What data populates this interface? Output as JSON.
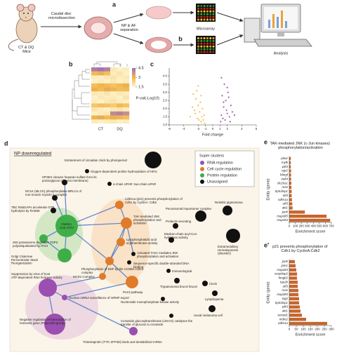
{
  "panels": {
    "a": {
      "label": "a",
      "mice": "CT & DQ Mice",
      "step1": "Caudal disc microdissection",
      "step2": "NP & AF separation",
      "microarray": "Microarray",
      "arrow_label": "b",
      "analysis": "Analysis"
    },
    "b": "b",
    "c": "c",
    "d": "d",
    "e": "e",
    "e2": "e'"
  },
  "network": {
    "title": "NP downregulated",
    "legend_title": "Super clusters",
    "clusters": [
      {
        "name": "RNA regulation",
        "color": "#9b4fb0",
        "nodes": [
          "Suppression by virus of host ATP-dependent RNA helicase activity",
          "Nuclear mRNA surveillance of mRNP export",
          "Negative regulation of transcription of homeotic gene (Polycomb group)",
          "Tristetraprolin (TTP, ZFP36) binds and destabilized mRNA"
        ]
      },
      {
        "name": "Cell cycle regulation",
        "color": "#e07b2a",
        "nodes": [
          "Cdkn1a (p21) prevents phosphorylation of Cdh1 by CyclinA: Cdk2",
          "TAK-mediated JNK phosphorylation and activation",
          "Lysophosphatidic acid acyltransferase activity",
          "Phosphorylation of DSF by the CCNB1:CDK1 complex",
          "MAD1 Complex",
          "PLK3 pathway"
        ]
      },
      {
        "name": "Protein regulation",
        "color": "#3fae49",
        "nodes": [
          "Clathrin coat of EV",
          "26S proteasome degrades TOP2 polyubiquitinated by ITCH",
          "Golgi Cisternae Pericentriolar Stack Reorganization"
        ]
      },
      {
        "name": "Unassigned",
        "color": "#111111",
        "nodes": [
          "Entrainment of circadian clock by photoperiod",
          "Oxygen-dependent proline hydroxylation of HIFα",
          "HPSE2 cleaves heparan sulfate from its proteoglycan (plasma membrane)",
          "MYLK (MLCK) phosphorylates MRLCs of non-muscle myosin II complex",
          "α-chain UPAR: two-chain uPAR",
          "TBC RabGAPs accelerate GTP hydrolysis by RAB35",
          "Peroxisomal importomer complex",
          "Prolactin secreting",
          "Retinitis pigmentosa",
          "Medium-chain acyl-CoA hydrolase activity",
          "Extramedullary Hematopoiesis (disorder)",
          "Activated TAK1 mediates JNK phosphorylation and activation",
          "Sequence-specific double-stranded DNA binding",
          "Immunological",
          "Trypanosoma brucei brucei",
          "Clock",
          "Lymphopenia",
          "Uveal melanoma cell",
          "Nucleoside monophosphate kinase activity",
          "Ceramide glucosyltransferase (UGCG) catalyses the transfer of glucose to ceramide"
        ]
      }
    ]
  },
  "chart_data": [
    {
      "type": "heatmap",
      "columns": [
        "CT",
        "DQ"
      ],
      "values": [
        [
          4.2,
          4.4,
          4.1,
          1.8,
          1.6,
          1.7
        ],
        [
          2.9,
          3.1,
          2.8,
          1.7,
          1.9,
          1.6
        ],
        [
          1.7,
          1.6,
          1.8,
          1.9,
          1.7,
          1.8
        ],
        [
          1.6,
          1.7,
          1.6,
          1.8,
          1.6,
          1.7
        ],
        [
          2.8,
          3.0,
          2.9,
          2.7,
          2.9,
          3.1
        ],
        [
          3.1,
          2.9,
          3.2,
          3.0,
          2.8,
          2.9
        ],
        [
          1.8,
          1.7,
          1.9,
          1.6,
          1.8,
          1.7
        ],
        [
          1.6,
          1.8,
          1.7,
          1.7,
          1.6,
          1.9
        ],
        [
          1.7,
          1.6,
          1.8,
          1.9,
          1.7,
          1.6
        ],
        [
          2.6,
          2.8,
          2.7,
          2.5,
          2.9,
          2.7
        ],
        [
          1.9,
          1.7,
          1.6,
          1.8,
          1.9,
          1.7
        ],
        [
          1.6,
          1.7,
          1.8,
          3.9,
          4.1,
          3.8
        ],
        [
          3.0,
          3.2,
          2.9,
          3.1,
          3.0,
          2.8
        ],
        [
          1.7,
          1.6,
          1.7,
          1.8,
          1.6,
          1.7
        ]
      ],
      "zlim": [
        1.5,
        4.5
      ],
      "zticks": [
        4.5,
        3,
        1.5
      ],
      "colormap": [
        "#fdf5cf",
        "#f2b54a",
        "#9b6fc0"
      ]
    },
    {
      "type": "scatter",
      "xlabel": "Fold change",
      "ylabel": "P-val(-Log10)",
      "xlim": [
        -6,
        6
      ],
      "ylim": [
        1,
        4.5
      ],
      "xticks": [
        -6,
        -4,
        -2,
        -1,
        0,
        1,
        2,
        4,
        6
      ],
      "yticks": [
        {
          "value": 1,
          "label": "1.0"
        },
        {
          "value": 1.5,
          "label": "1.5"
        },
        {
          "value": 2,
          "label": "2.0"
        },
        {
          "value": 2.5,
          "label": "2.5"
        },
        {
          "value": 3,
          "label": "3.0"
        },
        {
          "value": 3.5,
          "label": "3.5"
        },
        {
          "value": 4,
          "label": "4.0"
        }
      ],
      "series": [
        {
          "color": "#f0b030",
          "x": [
            -1.1,
            -1.3,
            -1.5,
            -1.6,
            -1.8,
            -2.0,
            -2.1,
            -2.3,
            -2.5,
            -2.7,
            -1.2,
            -1.4,
            -1.7,
            -1.9,
            -2.2,
            -2.4,
            -2.8,
            -3.1,
            -1.6,
            -2.0
          ],
          "values": [
            1.1,
            1.3,
            1.5,
            1.2,
            1.8,
            2.2,
            1.4,
            2.6,
            1.9,
            2.9,
            1.6,
            2.0,
            2.4,
            1.3,
            3.1,
            1.7,
            2.1,
            1.5,
            2.8,
            3.4
          ]
        },
        {
          "color": "#9a3fa0",
          "x": [
            1.1,
            1.2,
            1.4,
            1.5,
            1.7,
            1.8,
            2.0,
            2.1,
            2.3,
            2.5,
            1.3,
            1.6,
            1.9,
            2.2,
            2.4,
            2.7,
            1.2,
            1.5,
            2.0,
            3.0
          ],
          "values": [
            1.2,
            1.6,
            1.4,
            2.1,
            1.3,
            2.5,
            1.7,
            3.0,
            1.5,
            2.2,
            2.8,
            3.5,
            1.9,
            2.7,
            1.2,
            1.8,
            3.9,
            2.4,
            3.3,
            1.6
          ]
        }
      ]
    },
    {
      "type": "barh",
      "title": "TAK-mediated JNK (c-Jun kinases) phosphorylation/activation",
      "ylabel": "Entity (gene)",
      "xlabel": "Enrichment score",
      "categories": [
        "plaur",
        "mylk",
        "pik3",
        "egr2",
        "hbegf",
        "irak4",
        "slc20a1",
        "nras",
        "trp53inp1",
        "atf4",
        "cdkn1a",
        "atf3",
        "akt1",
        "junb",
        "map3k5",
        "map2k4"
      ],
      "values": [
        25,
        25,
        25,
        30,
        30,
        30,
        35,
        35,
        40,
        40,
        45,
        50,
        55,
        260,
        620,
        680
      ],
      "color": "#c4662e",
      "xlim": [
        0,
        700
      ],
      "xticks": [
        0,
        100,
        200,
        300,
        400,
        500,
        600,
        700
      ]
    },
    {
      "type": "barh",
      "title": "p21 prevents phosphorylation of Cdh1 by CyclinA:Cdk2",
      "ylabel": "Entity (gene)",
      "xlabel": "Enrichment score",
      "categories": [
        "junb",
        "pim1",
        "map2k4",
        "casp8ap2",
        "hmgb2",
        "top2b",
        "atf3",
        "nras",
        "map3k5",
        "ing2",
        "trp53inp1",
        "pik3",
        "akt1",
        "sertad1",
        "mdm2",
        "cdkn1a"
      ],
      "values": [
        40,
        45,
        50,
        55,
        55,
        60,
        60,
        65,
        65,
        70,
        70,
        75,
        80,
        90,
        120,
        270
      ],
      "color": "#c4662e",
      "xlim": [
        0,
        300
      ],
      "xticks": [
        0,
        50,
        100,
        150,
        200,
        250,
        300
      ]
    }
  ]
}
